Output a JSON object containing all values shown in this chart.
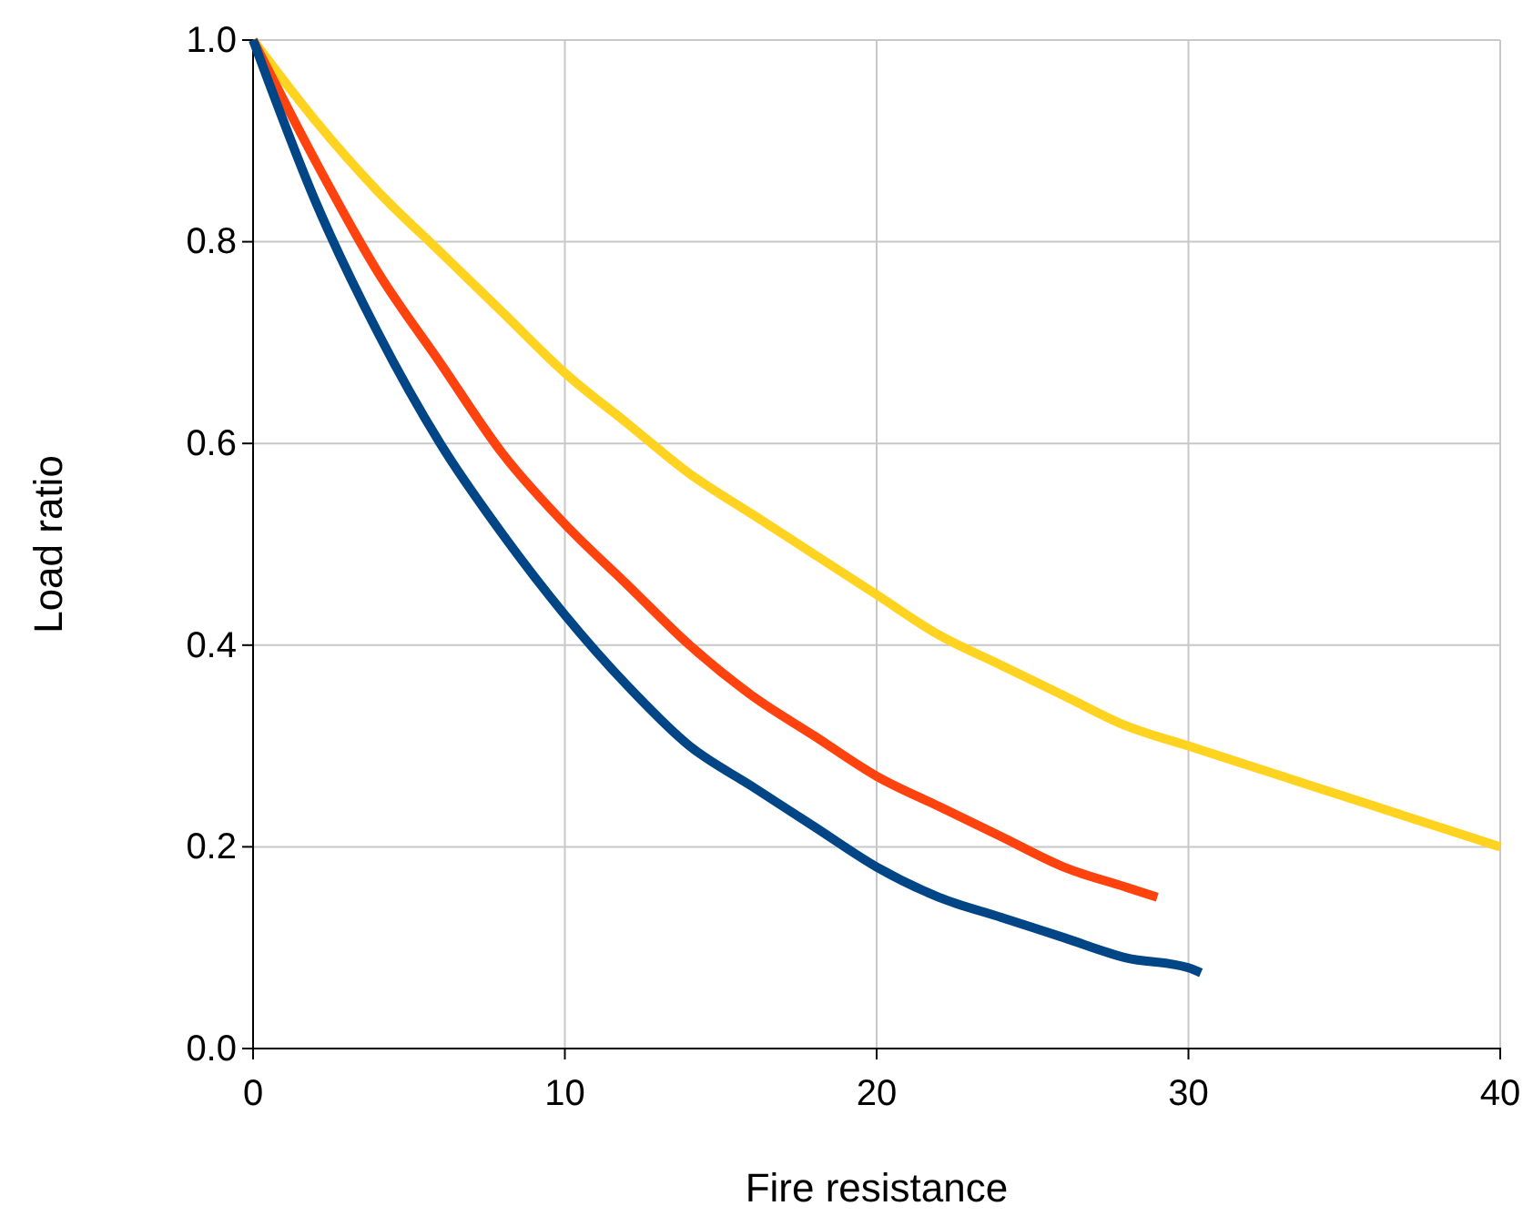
{
  "chart_data": {
    "type": "line",
    "xlabel": "Fire resistance",
    "ylabel": "Load ratio",
    "xlim": [
      0,
      40
    ],
    "ylim": [
      0,
      1
    ],
    "xticks": [
      0,
      10,
      20,
      30,
      40
    ],
    "yticks": [
      {
        "value": 0,
        "label": "0.0"
      },
      0.2,
      0.4,
      0.6,
      0.8,
      {
        "value": 1,
        "label": "1.0"
      }
    ],
    "grid": true,
    "line_style": "solid",
    "marker": "none",
    "series": [
      {
        "color": "#ffd320",
        "x": [
          0,
          2,
          4,
          6,
          8,
          10,
          12,
          14,
          16,
          18,
          20,
          22,
          24,
          26,
          28,
          30,
          32,
          34,
          36,
          38,
          40
        ],
        "values": [
          1,
          0.92,
          0.85,
          0.79,
          0.73,
          0.67,
          0.62,
          0.57,
          0.53,
          0.49,
          0.45,
          0.41,
          0.38,
          0.35,
          0.32,
          0.3,
          0.28,
          0.26,
          0.24,
          0.22,
          0.2
        ]
      },
      {
        "color": "#ff420e",
        "x": [
          0,
          2,
          4,
          6,
          8,
          10,
          12,
          14,
          16,
          18,
          20,
          22,
          24,
          26,
          28,
          29
        ],
        "values": [
          1,
          0.88,
          0.77,
          0.68,
          0.59,
          0.52,
          0.46,
          0.4,
          0.35,
          0.31,
          0.27,
          0.24,
          0.21,
          0.18,
          0.16,
          0.15
        ]
      },
      {
        "color": "#004586",
        "x": [
          0,
          2,
          4,
          6,
          8,
          10,
          12,
          14,
          16,
          18,
          20,
          22,
          24,
          26,
          28,
          30,
          30.4
        ],
        "values": [
          1,
          0.84,
          0.71,
          0.6,
          0.51,
          0.43,
          0.36,
          0.3,
          0.26,
          0.22,
          0.18,
          0.15,
          0.13,
          0.11,
          0.09,
          0.08,
          0.075
        ]
      }
    ]
  }
}
